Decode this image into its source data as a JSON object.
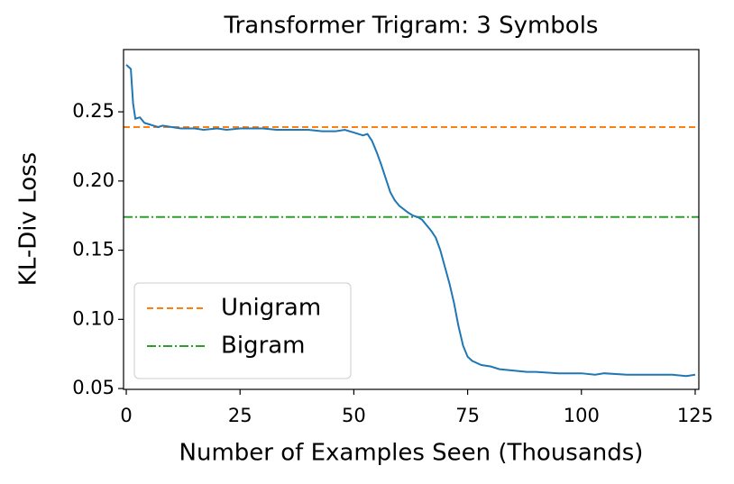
{
  "chart_data": {
    "type": "line",
    "title": "Transformer Trigram: 3 Symbols",
    "xlabel": "Number of Examples Seen (Thousands)",
    "ylabel": "KL-Div Loss",
    "xlim": [
      -0.6,
      125.8
    ],
    "ylim": [
      0.0494,
      0.295
    ],
    "xticks": [
      0,
      25,
      50,
      75,
      100,
      125
    ],
    "yticks": [
      0.05,
      {
        "value": 0.1,
        "label": "0.10"
      },
      0.15,
      {
        "value": 0.2,
        "label": "0.20"
      },
      0.25
    ],
    "series": [
      {
        "color": "#1f77b4",
        "x": [
          0,
          1,
          1.5,
          2,
          3,
          4,
          5,
          6,
          7,
          8,
          10,
          12,
          15,
          17,
          20,
          22,
          25,
          28,
          30,
          33,
          35,
          38,
          40,
          43,
          46,
          48,
          50,
          52,
          53,
          54,
          55,
          56,
          57,
          58,
          59,
          60,
          62,
          63,
          64,
          65,
          66,
          67,
          68,
          69,
          70,
          71,
          72,
          73,
          74,
          75,
          76,
          78,
          80,
          82,
          85,
          88,
          90,
          95,
          100,
          103,
          105,
          110,
          115,
          120,
          123,
          125
        ],
        "values": [
          0.284,
          0.281,
          0.256,
          0.245,
          0.246,
          0.242,
          0.241,
          0.24,
          0.239,
          0.24,
          0.239,
          0.238,
          0.238,
          0.237,
          0.238,
          0.237,
          0.238,
          0.238,
          0.238,
          0.237,
          0.237,
          0.237,
          0.237,
          0.236,
          0.236,
          0.237,
          0.235,
          0.233,
          0.234,
          0.229,
          0.221,
          0.212,
          0.202,
          0.192,
          0.186,
          0.182,
          0.177,
          0.175,
          0.174,
          0.172,
          0.168,
          0.164,
          0.159,
          0.15,
          0.138,
          0.126,
          0.112,
          0.095,
          0.081,
          0.073,
          0.07,
          0.067,
          0.066,
          0.064,
          0.063,
          0.062,
          0.062,
          0.061,
          0.061,
          0.06,
          0.061,
          0.06,
          0.06,
          0.06,
          0.059,
          0.06
        ]
      }
    ],
    "hlines": [
      {
        "name": "Unigram",
        "value": 0.239,
        "color": "#ff7f0e",
        "dash": "7 4"
      },
      {
        "name": "Bigram",
        "value": 0.174,
        "color": "#2ca02c",
        "dash": "10 3 2 3"
      }
    ],
    "legend": "lower left"
  }
}
